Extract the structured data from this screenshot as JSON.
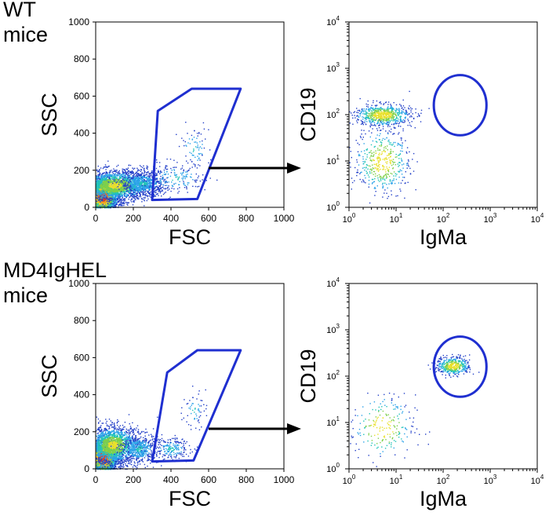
{
  "figure": {
    "row_labels": [
      {
        "line1": "WT",
        "line2": "mice"
      },
      {
        "line1": "MD4IgHEL",
        "line2": "mice"
      }
    ]
  },
  "chart_data": [
    {
      "type": "scatter",
      "panel": "WT FSC vs SSC",
      "xlabel": "FSC",
      "ylabel": "SSC",
      "xlim": [
        0,
        1000
      ],
      "ylim": [
        0,
        1000
      ],
      "x_ticks": [
        "0",
        "200",
        "400",
        "600",
        "800",
        "1000"
      ],
      "y_ticks": [
        "0",
        "200",
        "400",
        "600",
        "800",
        "1000"
      ],
      "density_clusters": [
        {
          "x": 35,
          "y": 60,
          "sx": 40,
          "sy": 45,
          "n": 2400
        },
        {
          "x": 100,
          "y": 120,
          "sx": 90,
          "sy": 40,
          "n": 2000
        },
        {
          "x": 250,
          "y": 130,
          "sx": 60,
          "sy": 35,
          "n": 700
        },
        {
          "x": 420,
          "y": 160,
          "sx": 90,
          "sy": 40,
          "n": 180
        },
        {
          "x": 520,
          "y": 320,
          "sx": 40,
          "sy": 60,
          "n": 80
        }
      ],
      "gate_polygon": [
        [
          330,
          520
        ],
        [
          510,
          640
        ],
        [
          770,
          640
        ],
        [
          540,
          45
        ],
        [
          300,
          40
        ]
      ],
      "gate_color": "#1f2fd0"
    },
    {
      "type": "scatter",
      "panel": "WT IgMa vs CD19",
      "xlabel": "IgMa",
      "ylabel": "CD19",
      "scale": "log",
      "xlim": [
        1,
        10000
      ],
      "ylim": [
        1,
        10000
      ],
      "tick_base": "10",
      "tick_exponents": [
        "0",
        "1",
        "2",
        "3",
        "4"
      ],
      "density_clusters": [
        {
          "x": 5,
          "y": 100,
          "sx_log": 0.3,
          "sy_log": 0.12,
          "n": 700
        },
        {
          "x": 5,
          "y": 10,
          "sx_log": 0.3,
          "sy_log": 0.35,
          "n": 450
        }
      ],
      "gate_ellipse": {
        "cx": 230,
        "cy": 160,
        "rx_log": 0.56,
        "ry_log": 0.65
      },
      "gate_color": "#1f2fd0"
    },
    {
      "type": "scatter",
      "panel": "MD4IgHEL FSC vs SSC",
      "xlabel": "FSC",
      "ylabel": "SSC",
      "xlim": [
        0,
        1000
      ],
      "ylim": [
        0,
        1000
      ],
      "x_ticks": [
        "0",
        "200",
        "400",
        "600",
        "800",
        "1000"
      ],
      "y_ticks": [
        "0",
        "200",
        "400",
        "600",
        "800",
        "1000"
      ],
      "density_clusters": [
        {
          "x": 35,
          "y": 60,
          "sx": 40,
          "sy": 45,
          "n": 2400
        },
        {
          "x": 90,
          "y": 130,
          "sx": 70,
          "sy": 50,
          "n": 1800
        },
        {
          "x": 230,
          "y": 110,
          "sx": 50,
          "sy": 40,
          "n": 500
        },
        {
          "x": 400,
          "y": 110,
          "sx": 50,
          "sy": 30,
          "n": 200
        },
        {
          "x": 520,
          "y": 320,
          "sx": 30,
          "sy": 50,
          "n": 60
        }
      ],
      "gate_polygon": [
        [
          380,
          520
        ],
        [
          540,
          640
        ],
        [
          770,
          640
        ],
        [
          520,
          45
        ],
        [
          300,
          40
        ]
      ],
      "gate_color": "#1f2fd0"
    },
    {
      "type": "scatter",
      "panel": "MD4IgHEL IgMa vs CD19",
      "xlabel": "IgMa",
      "ylabel": "CD19",
      "scale": "log",
      "xlim": [
        1,
        10000
      ],
      "ylim": [
        1,
        10000
      ],
      "tick_base": "10",
      "tick_exponents": [
        "0",
        "1",
        "2",
        "3",
        "4"
      ],
      "density_clusters": [
        {
          "x": 160,
          "y": 170,
          "sx_log": 0.18,
          "sy_log": 0.1,
          "n": 450
        },
        {
          "x": 5,
          "y": 8,
          "sx_log": 0.35,
          "sy_log": 0.35,
          "n": 220
        }
      ],
      "gate_ellipse": {
        "cx": 230,
        "cy": 160,
        "rx_log": 0.56,
        "ry_log": 0.65
      },
      "gate_color": "#1f2fd0"
    }
  ],
  "arrows": {
    "color": "#000000"
  }
}
